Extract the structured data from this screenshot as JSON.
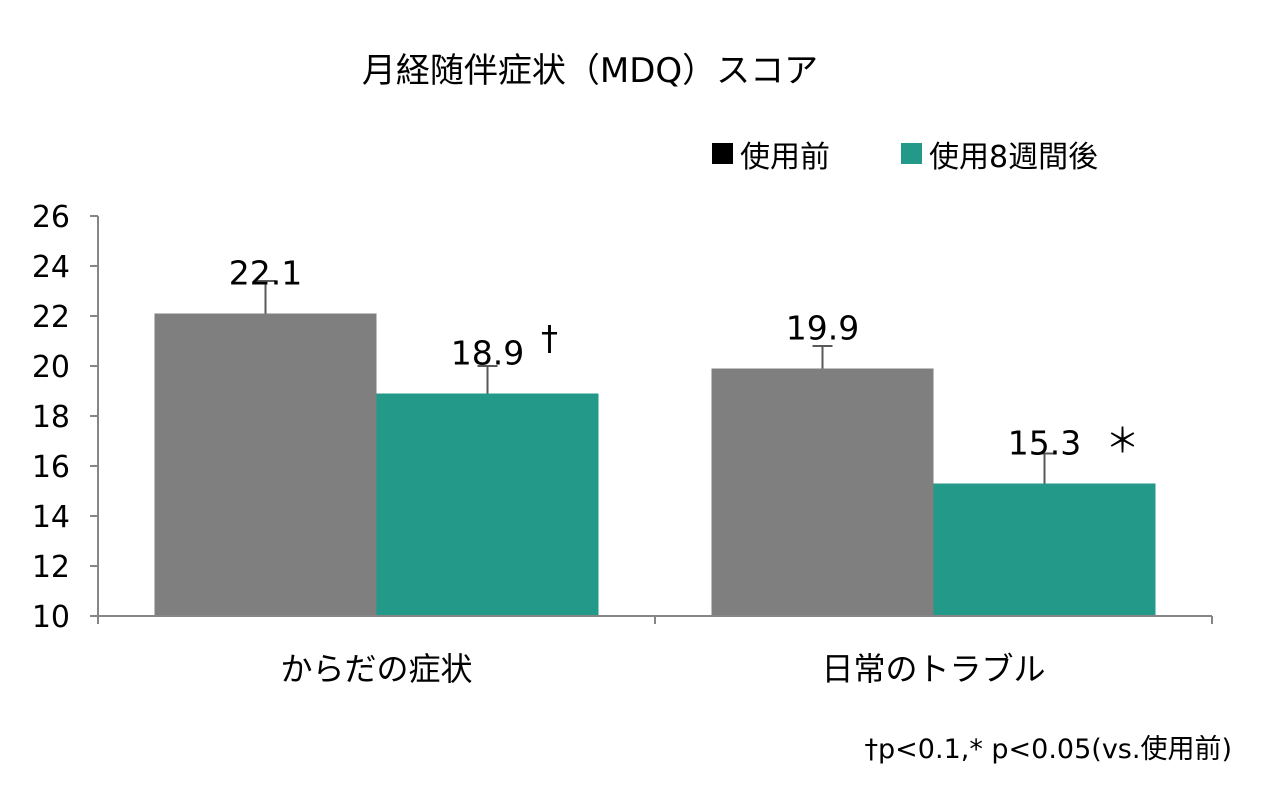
{
  "chart_data": {
    "type": "bar",
    "title": "月経随伴症状（MDQ）スコア",
    "xlabel": "",
    "ylabel": "",
    "ylim": [
      10,
      26
    ],
    "yticks": [
      10,
      12,
      14,
      16,
      18,
      20,
      22,
      24,
      26
    ],
    "categories": [
      "からだの症状",
      "日常のトラブル"
    ],
    "series": [
      {
        "name": "使用前",
        "color": "#7f7f7f",
        "values": [
          22.1,
          19.9
        ],
        "error": [
          1.3,
          0.9
        ],
        "labels": [
          "22.1",
          "19.9"
        ],
        "marks": [
          "",
          ""
        ]
      },
      {
        "name": "使用8週間後",
        "color": "#23998a",
        "values": [
          18.9,
          15.3
        ],
        "error": [
          1.1,
          1.2
        ],
        "labels": [
          "18.9",
          "15.3"
        ],
        "marks": [
          "†",
          "＊"
        ]
      }
    ],
    "legend_position": "top-right",
    "grid": false,
    "footnote": "†p<0.1,* p<0.05(vs.使用前)"
  }
}
